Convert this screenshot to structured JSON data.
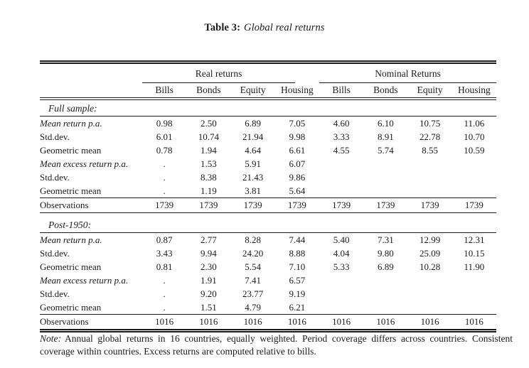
{
  "title": {
    "label": "Table 3:",
    "caption": "Global real returns"
  },
  "table": {
    "groups": [
      {
        "label": "Real returns"
      },
      {
        "label": "Nominal Returns"
      }
    ],
    "columns": [
      "Bills",
      "Bonds",
      "Equity",
      "Housing",
      "Bills",
      "Bonds",
      "Equity",
      "Housing"
    ],
    "sections": [
      {
        "heading": "Full sample:",
        "rows": [
          {
            "label": "Mean return p.a.",
            "italic": true,
            "values": [
              "0.98",
              "2.50",
              "6.89",
              "7.05",
              "4.60",
              "6.10",
              "10.75",
              "11.06"
            ]
          },
          {
            "label": "Std.dev.",
            "italic": false,
            "values": [
              "6.01",
              "10.74",
              "21.94",
              "9.98",
              "3.33",
              "8.91",
              "22.78",
              "10.70"
            ]
          },
          {
            "label": "Geometric mean",
            "italic": false,
            "values": [
              "0.78",
              "1.94",
              "4.64",
              "6.61",
              "4.55",
              "5.74",
              "8.55",
              "10.59"
            ]
          },
          {
            "label": "Mean excess return p.a.",
            "italic": true,
            "values": [
              ".",
              "1.53",
              "5.91",
              "6.07",
              "",
              "",
              "",
              ""
            ]
          },
          {
            "label": "Std.dev.",
            "italic": false,
            "values": [
              ".",
              "8.38",
              "21.43",
              "9.86",
              "",
              "",
              "",
              ""
            ]
          },
          {
            "label": "Geometric mean",
            "italic": false,
            "values": [
              ".",
              "1.19",
              "3.81",
              "5.64",
              "",
              "",
              "",
              ""
            ]
          }
        ],
        "observations": {
          "label": "Observations",
          "values": [
            "1739",
            "1739",
            "1739",
            "1739",
            "1739",
            "1739",
            "1739",
            "1739"
          ]
        }
      },
      {
        "heading": "Post-1950:",
        "rows": [
          {
            "label": "Mean return p.a.",
            "italic": true,
            "values": [
              "0.87",
              "2.77",
              "8.28",
              "7.44",
              "5.40",
              "7.31",
              "12.99",
              "12.31"
            ]
          },
          {
            "label": "Std.dev.",
            "italic": false,
            "values": [
              "3.43",
              "9.94",
              "24.20",
              "8.88",
              "4.04",
              "9.80",
              "25.09",
              "10.15"
            ]
          },
          {
            "label": "Geometric mean",
            "italic": false,
            "values": [
              "0.81",
              "2.30",
              "5.54",
              "7.10",
              "5.33",
              "6.89",
              "10.28",
              "11.90"
            ]
          },
          {
            "label": "Mean excess return p.a.",
            "italic": true,
            "values": [
              ".",
              "1.91",
              "7.41",
              "6.57",
              "",
              "",
              "",
              ""
            ]
          },
          {
            "label": "Std.dev.",
            "italic": false,
            "values": [
              ".",
              "9.20",
              "23.77",
              "9.19",
              "",
              "",
              "",
              ""
            ]
          },
          {
            "label": "Geometric mean",
            "italic": false,
            "values": [
              ".",
              "1.51",
              "4.79",
              "6.21",
              "",
              "",
              "",
              ""
            ]
          }
        ],
        "observations": {
          "label": "Observations",
          "values": [
            "1016",
            "1016",
            "1016",
            "1016",
            "1016",
            "1016",
            "1016",
            "1016"
          ]
        }
      }
    ]
  },
  "note": {
    "label": "Note:",
    "text": "Annual global returns in 16 countries, equally weighted. Period coverage differs across countries. Consistent coverage within countries. Excess returns are computed relative to bills."
  },
  "colors": {
    "text": "#1b1b1b",
    "background": "#ffffff",
    "rule": "#1b1b1b"
  }
}
